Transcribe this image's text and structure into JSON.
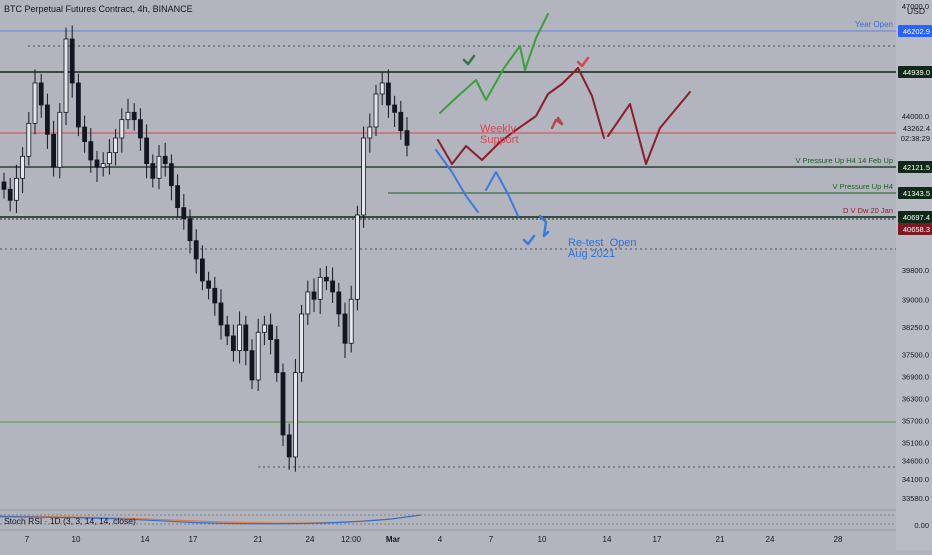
{
  "title": "BTC Perpetual Futures Contract, 4h, BINANCE",
  "currency": "USD",
  "indicator": {
    "label": "Stoch RSI · 1D (3, 3, 14, 14, close)",
    "axis_label": "0.00"
  },
  "price_labels": {
    "year_open": "46202.9",
    "level_a": "44939.0",
    "current": "43262.4",
    "countdown": "02:38:29",
    "level_b": "42121.5",
    "level_c": "41343.5",
    "level_d": "40697.4",
    "level_e": "40658.3"
  },
  "annotations": {
    "year_open": "Year Open",
    "pressure_1": "V Pressure Up H4 14 Feb Up",
    "pressure_2": "V Pressure Up H4",
    "dvdw": "D V Dw 20 Jan",
    "weekly_support": "Weekly\nSupport",
    "retest": "Re-test  Open\nAug 2021"
  },
  "colors": {
    "background": "#b2b5be",
    "candle": "#131722",
    "year_open": "#5b86e5",
    "current_line": "#d94452",
    "green_line": "#1e5a2a",
    "stoch_k": "#2f6fd6",
    "stoch_d": "#e07b39"
  },
  "chart_data": {
    "type": "candlestick",
    "title": "BTC Perpetual Futures Contract, 4h, BINANCE",
    "x_ticks": [
      "7",
      "10",
      "14",
      "17",
      "21",
      "24",
      "12:00",
      "Mar",
      "4",
      "7",
      "10",
      "14",
      "17",
      "21",
      "24",
      "28"
    ],
    "y_ticks": [
      47000,
      46202.9,
      44000,
      43262.4,
      42121.5,
      41343.5,
      40697.4,
      39800,
      39000,
      38250,
      37500,
      36900,
      36300,
      35700,
      35100,
      34600,
      34100,
      33580
    ],
    "ylim": [
      33580,
      47000
    ],
    "levels": [
      {
        "name": "Year Open",
        "value": 46202.9
      },
      {
        "name": "",
        "value": 44939.0
      },
      {
        "name": "",
        "value": 43262.4
      },
      {
        "name": "V Pressure Up H4 14 Feb Up",
        "value": 42121.5
      },
      {
        "name": "V Pressure Up H4",
        "value": 41343.5
      },
      {
        "name": "D V Dw 20 Jan",
        "value": 40697.4
      },
      {
        "name": "",
        "value": 40658.3
      }
    ],
    "candles_close": [
      42000,
      41700,
      42300,
      42900,
      43800,
      44900,
      44300,
      43500,
      42600,
      44100,
      46100,
      44900,
      43700,
      43300,
      42800,
      42600,
      42700,
      43000,
      43400,
      43900,
      44100,
      43900,
      43400,
      42700,
      42300,
      42900,
      42700,
      42100,
      41500,
      41200,
      40600,
      40100,
      39500,
      39300,
      38900,
      38300,
      38000,
      37600,
      38300,
      37600,
      36800,
      38100,
      38300,
      37900,
      37000,
      35300,
      34700,
      37000,
      38600,
      39200,
      39000,
      39600,
      39500,
      39200,
      38600,
      37800,
      39000,
      41300,
      43400,
      43700,
      44600,
      44900,
      44300,
      44100,
      43600,
      43200
    ],
    "indicator": {
      "name": "Stoch RSI · 1D (3, 3, 14, 14, close)",
      "k": [
        0.52,
        0.5,
        0.47,
        0.44,
        0.38,
        0.3,
        0.2,
        0.1,
        0.04,
        0.02,
        0.02,
        0.04,
        0.1,
        0.2,
        0.36,
        0.64
      ],
      "d": [
        0.56,
        0.55,
        0.52,
        0.48,
        0.44,
        0.38,
        0.3,
        0.22,
        0.14,
        0.09,
        0.06,
        0.07,
        0.12,
        0.22,
        0.36,
        0.62
      ]
    }
  }
}
